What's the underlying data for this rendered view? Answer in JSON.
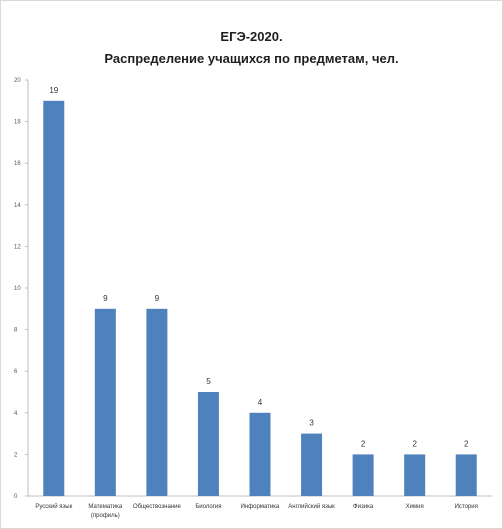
{
  "chart_data": {
    "type": "bar",
    "title": [
      "ЕГЭ-2020.",
      "Распределение учащихся по предметам, чел."
    ],
    "categories": [
      [
        "Русский язык"
      ],
      [
        "Математика",
        "(профиль)"
      ],
      [
        "Обществознание"
      ],
      [
        "Биология"
      ],
      [
        "Информатика"
      ],
      [
        "Английский язык"
      ],
      [
        "Физика"
      ],
      [
        "Химия"
      ],
      [
        "История"
      ]
    ],
    "values": [
      19,
      9,
      9,
      5,
      4,
      3,
      2,
      2,
      2
    ],
    "ylim": [
      0,
      20
    ],
    "yticks": [
      0,
      2,
      4,
      6,
      8,
      10,
      12,
      14,
      16,
      18,
      20
    ],
    "grid": false,
    "bar_color": "#4f81bd",
    "axis_color": "#bfbfbf"
  }
}
